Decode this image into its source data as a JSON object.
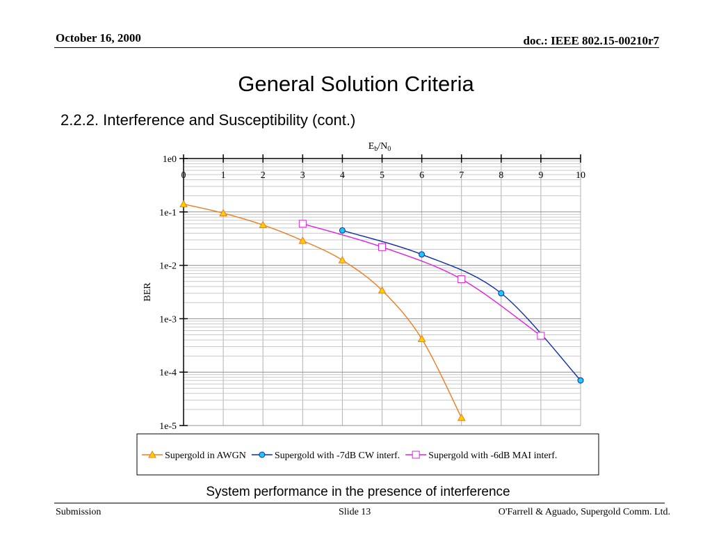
{
  "header": {
    "date": "October 16, 2000",
    "doc": "doc.: IEEE 802.15-00210r7"
  },
  "title": "General Solution Criteria",
  "subtitle": "2.2.2. Interference and Susceptibility (cont.)",
  "caption": "System performance in the presence of interference",
  "footer": {
    "left": "Submission",
    "middle": "Slide 13",
    "right": "O'Farrell & Aguado, Supergold Comm. Ltd."
  },
  "chart_data": {
    "type": "line",
    "xlabel_main": "E",
    "xlabel_sub1": "b",
    "xlabel_mid": "/N",
    "xlabel_sub2": "0",
    "ylabel": "BER",
    "x_axis_position": "top",
    "xlim": [
      0,
      10
    ],
    "y_scale": "log",
    "ylim": [
      1e-05,
      1
    ],
    "x_ticks": [
      "0",
      "1",
      "2",
      "3",
      "4",
      "5",
      "6",
      "7",
      "8",
      "9",
      "10"
    ],
    "y_ticks": [
      "1e0",
      "1e-1",
      "1e-2",
      "1e-3",
      "1e-4",
      "1e-5"
    ],
    "grid": true,
    "legend_position": "bottom",
    "series": [
      {
        "name": "Supergold in AWGN",
        "color": "#f07a1e",
        "marker": "triangle",
        "marker_fill": "#ffd000",
        "x": [
          0,
          1,
          2,
          3,
          4,
          5,
          6,
          7
        ],
        "y": [
          0.14,
          0.095,
          0.057,
          0.029,
          0.0125,
          0.0034,
          0.00042,
          1.4e-05
        ]
      },
      {
        "name": "Supergold with -7dB CW interf.",
        "color": "#0b2aa8",
        "marker": "circle",
        "marker_fill": "#1ec8f0",
        "x": [
          4,
          6,
          8,
          10
        ],
        "y": [
          0.045,
          0.016,
          0.003,
          7e-05
        ]
      },
      {
        "name": "Supergold with -6dB MAI interf.",
        "color": "#e020e0",
        "marker": "square",
        "marker_fill": "none",
        "x": [
          3,
          5,
          7,
          9
        ],
        "y": [
          0.06,
          0.022,
          0.0055,
          0.00048
        ]
      }
    ]
  }
}
